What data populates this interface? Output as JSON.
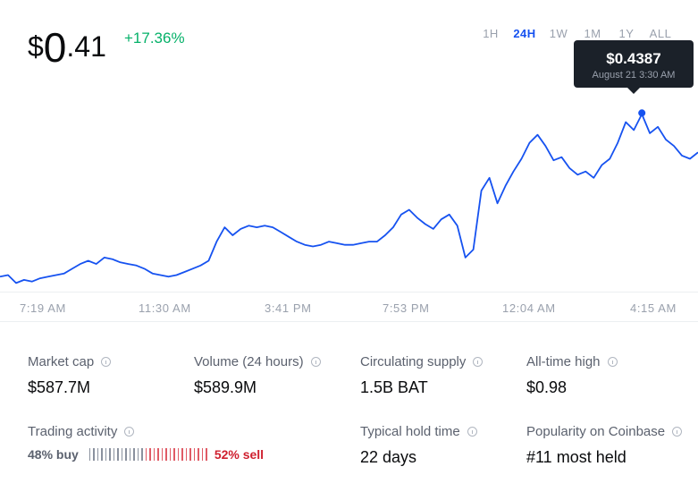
{
  "price": {
    "currency": "$",
    "integer": "0",
    "decimal": ".41",
    "change": "+17.36%",
    "change_color": "#05b169"
  },
  "ranges": [
    {
      "label": "1H",
      "active": false
    },
    {
      "label": "24H",
      "active": true
    },
    {
      "label": "1W",
      "active": false
    },
    {
      "label": "1M",
      "active": false
    },
    {
      "label": "1Y",
      "active": false
    },
    {
      "label": "ALL",
      "active": false
    }
  ],
  "tooltip": {
    "price": "$0.4387",
    "date": "August 21 3:30 AM"
  },
  "accent_color": "#1652f0",
  "chart_data": {
    "type": "line",
    "x_ticks": [
      "7:19 AM",
      "11:30 AM",
      "3:41 PM",
      "7:53 PM",
      "12:04 AM",
      "4:15 AM"
    ],
    "series": [
      {
        "values": [
          0.336,
          0.337,
          0.332,
          0.334,
          0.333,
          0.335,
          0.336,
          0.337,
          0.338,
          0.341,
          0.344,
          0.346,
          0.344,
          0.348,
          0.347,
          0.345,
          0.344,
          0.343,
          0.341,
          0.338,
          0.337,
          0.336,
          0.337,
          0.339,
          0.341,
          0.343,
          0.346,
          0.358,
          0.367,
          0.362,
          0.366,
          0.368,
          0.367,
          0.368,
          0.367,
          0.364,
          0.361,
          0.358,
          0.356,
          0.355,
          0.356,
          0.358,
          0.357,
          0.356,
          0.356,
          0.357,
          0.358,
          0.358,
          0.362,
          0.367,
          0.375,
          0.378,
          0.373,
          0.369,
          0.366,
          0.372,
          0.375,
          0.368,
          0.348,
          0.353,
          0.39,
          0.398,
          0.382,
          0.393,
          0.402,
          0.41,
          0.42,
          0.425,
          0.418,
          0.409,
          0.411,
          0.404,
          0.4,
          0.402,
          0.398,
          0.406,
          0.41,
          0.42,
          0.433,
          0.428,
          0.438,
          0.426,
          0.43,
          0.422,
          0.418,
          0.412,
          0.41,
          0.414
        ]
      }
    ],
    "highlight": {
      "value": 0.4387,
      "label": "$0.4387"
    },
    "grid": false
  },
  "stats": [
    {
      "label": "Market cap",
      "value": "$587.7M"
    },
    {
      "label": "Volume (24 hours)",
      "value": "$589.9M"
    },
    {
      "label": "Circulating supply",
      "value": "1.5B BAT"
    },
    {
      "label": "All-time high",
      "value": "$0.98"
    },
    {
      "label": "Typical hold time",
      "value": "22 days"
    },
    {
      "label": "Popularity on Coinbase",
      "value": "#11 most held"
    }
  ],
  "trading": {
    "label": "Trading activity",
    "buy_pct": 48,
    "sell_pct": 52,
    "buy_text": "48% buy",
    "sell_text": "52% sell",
    "buy_color": "#5b616e",
    "sell_color": "#cf202f"
  }
}
